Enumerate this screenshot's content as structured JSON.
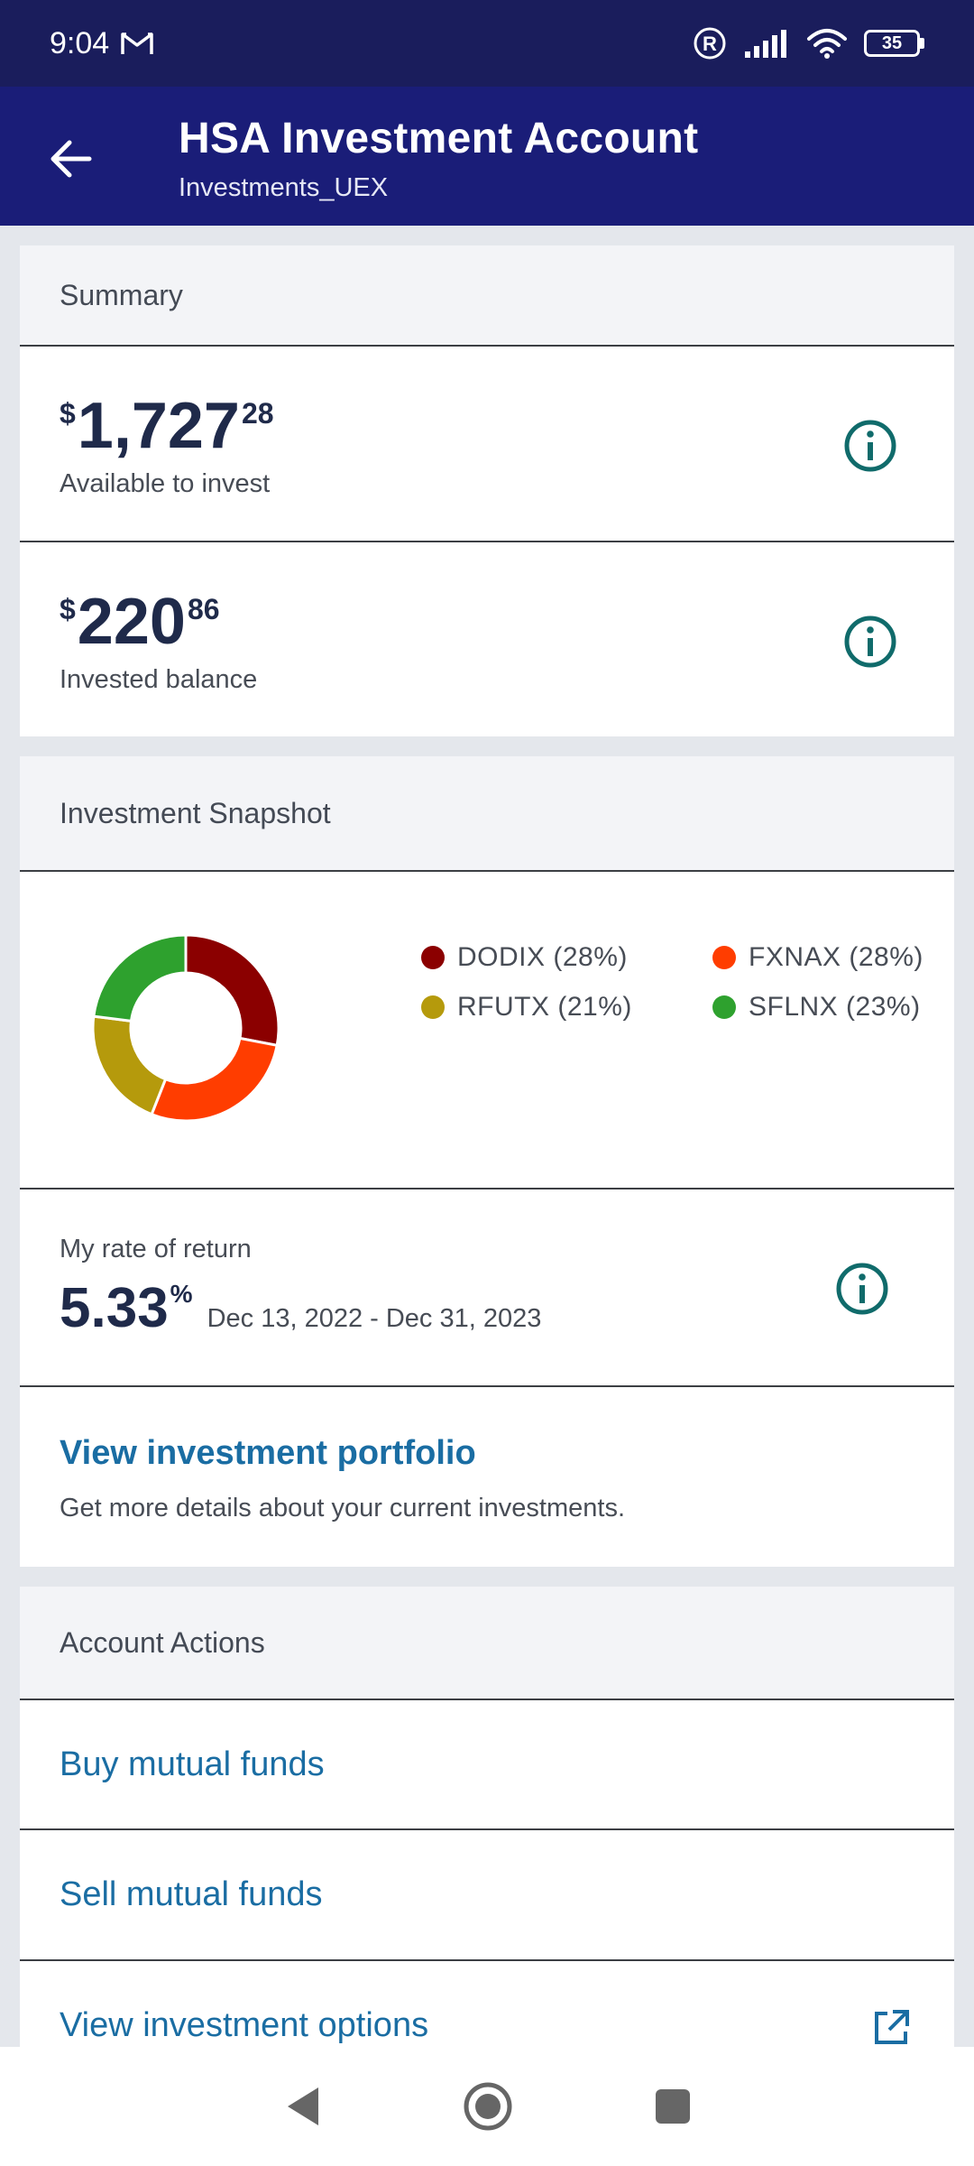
{
  "status": {
    "time": "9:04",
    "battery": "35"
  },
  "header": {
    "title": "HSA Investment Account",
    "subtitle": "Investments_UEX"
  },
  "summary": {
    "header": "Summary",
    "available": {
      "currency": "$",
      "whole": "1,727",
      "cents": "28",
      "label": "Available to invest"
    },
    "invested": {
      "currency": "$",
      "whole": "220",
      "cents": "86",
      "label": "Invested balance"
    }
  },
  "snapshot": {
    "header": "Investment Snapshot",
    "legend": [
      {
        "ticker": "DODIX",
        "pct": "(28%)",
        "color": "#8b0000"
      },
      {
        "ticker": "FXNAX",
        "pct": "(28%)",
        "color": "#ff3d00"
      },
      {
        "ticker": "RFUTX",
        "pct": "(21%)",
        "color": "#b59a0c"
      },
      {
        "ticker": "SFLNX",
        "pct": "(23%)",
        "color": "#2ea12e"
      }
    ],
    "return": {
      "label": "My rate of return",
      "value": "5.33",
      "unit": "%",
      "period": "Dec 13, 2022 - Dec 31, 2023"
    },
    "portfolio": {
      "title": "View investment portfolio",
      "description": "Get more details about your current investments."
    }
  },
  "actions": {
    "header": "Account Actions",
    "items": [
      "Buy mutual funds",
      "Sell mutual funds",
      "View investment options"
    ]
  },
  "chart_data": {
    "type": "pie",
    "categories": [
      "DODIX",
      "FXNAX",
      "RFUTX",
      "SFLNX"
    ],
    "values": [
      28,
      28,
      21,
      23
    ],
    "colors": [
      "#8b0000",
      "#ff3d00",
      "#b59a0c",
      "#2ea12e"
    ]
  },
  "colors": {
    "status_bar": "#1a1d5c",
    "app_bar": "#1a1d78",
    "link": "#1a6da3",
    "icon_teal": "#106b6b"
  }
}
